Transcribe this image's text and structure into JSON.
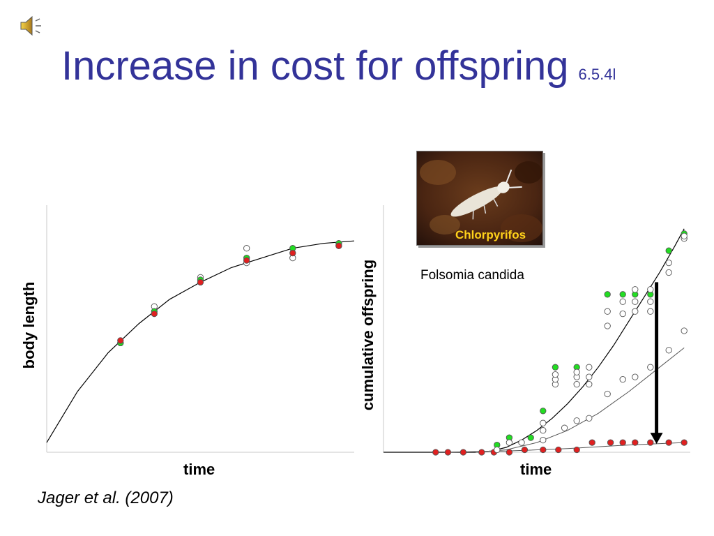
{
  "slide": {
    "title": "Increase in cost for offspring",
    "slide_number": "6.5.4l",
    "citation": "Jager et al. (2007)",
    "photo_label": "Chlorpyrifos",
    "species": "Folsomia candida"
  },
  "colors": {
    "title": "#333399",
    "control": "#22dd22",
    "exposed": "#e02020",
    "photo_label": "#ffd21a"
  },
  "icons": {
    "speaker": "speaker-icon"
  },
  "chart_data": [
    {
      "type": "scatter",
      "xlabel": "time",
      "ylabel": "body length",
      "xlim": [
        0,
        1
      ],
      "ylim": [
        0,
        1
      ],
      "grid": false,
      "series": [
        {
          "marker": "open",
          "points": [
            [
              0.24,
              0.45
            ],
            [
              0.35,
              0.6
            ],
            [
              0.5,
              0.72
            ],
            [
              0.65,
              0.84
            ],
            [
              0.65,
              0.78
            ],
            [
              0.8,
              0.8
            ],
            [
              0.95,
              0.85
            ]
          ]
        },
        {
          "marker": "green",
          "points": [
            [
              0.24,
              0.45
            ],
            [
              0.35,
              0.58
            ],
            [
              0.5,
              0.71
            ],
            [
              0.65,
              0.8
            ],
            [
              0.8,
              0.84
            ],
            [
              0.95,
              0.86
            ]
          ]
        },
        {
          "marker": "red",
          "points": [
            [
              0.24,
              0.46
            ],
            [
              0.35,
              0.57
            ],
            [
              0.5,
              0.7
            ],
            [
              0.65,
              0.79
            ],
            [
              0.8,
              0.82
            ],
            [
              0.95,
              0.85
            ]
          ]
        }
      ],
      "fit_lines": [
        {
          "style": "solid",
          "points": [
            [
              0,
              0.04
            ],
            [
              0.1,
              0.25
            ],
            [
              0.2,
              0.41
            ],
            [
              0.3,
              0.53
            ],
            [
              0.4,
              0.63
            ],
            [
              0.5,
              0.7
            ],
            [
              0.6,
              0.76
            ],
            [
              0.7,
              0.8
            ],
            [
              0.8,
              0.84
            ],
            [
              0.9,
              0.86
            ],
            [
              1,
              0.87
            ]
          ]
        }
      ]
    },
    {
      "type": "scatter",
      "xlabel": "time",
      "ylabel": "cumulative offspring",
      "xlim": [
        0,
        1
      ],
      "ylim": [
        0,
        1
      ],
      "grid": false,
      "series": [
        {
          "marker": "green",
          "points": [
            [
              0.37,
              0.03
            ],
            [
              0.41,
              0.06
            ],
            [
              0.48,
              0.06
            ],
            [
              0.52,
              0.17
            ],
            [
              0.56,
              0.35
            ],
            [
              0.63,
              0.35
            ],
            [
              0.73,
              0.65
            ],
            [
              0.78,
              0.65
            ],
            [
              0.82,
              0.65
            ],
            [
              0.87,
              0.65
            ],
            [
              0.93,
              0.83
            ],
            [
              0.98,
              0.9
            ]
          ]
        },
        {
          "marker": "red",
          "points": [
            [
              0.17,
              0
            ],
            [
              0.21,
              0
            ],
            [
              0.26,
              0
            ],
            [
              0.32,
              0
            ],
            [
              0.36,
              0
            ],
            [
              0.41,
              0
            ],
            [
              0.46,
              0.01
            ],
            [
              0.52,
              0.01
            ],
            [
              0.57,
              0.01
            ],
            [
              0.63,
              0.01
            ],
            [
              0.68,
              0.04
            ],
            [
              0.74,
              0.04
            ],
            [
              0.78,
              0.04
            ],
            [
              0.82,
              0.04
            ],
            [
              0.87,
              0.04
            ],
            [
              0.93,
              0.04
            ],
            [
              0.98,
              0.04
            ]
          ]
        },
        {
          "marker": "open",
          "points": [
            [
              0.37,
              0.01
            ],
            [
              0.41,
              0.04
            ],
            [
              0.45,
              0.04
            ],
            [
              0.52,
              0.05
            ],
            [
              0.52,
              0.09
            ],
            [
              0.52,
              0.12
            ],
            [
              0.56,
              0.28
            ],
            [
              0.56,
              0.3
            ],
            [
              0.56,
              0.32
            ],
            [
              0.63,
              0.28
            ],
            [
              0.63,
              0.31
            ],
            [
              0.63,
              0.33
            ],
            [
              0.67,
              0.28
            ],
            [
              0.67,
              0.31
            ],
            [
              0.67,
              0.35
            ],
            [
              0.73,
              0.52
            ],
            [
              0.73,
              0.58
            ],
            [
              0.78,
              0.57
            ],
            [
              0.78,
              0.62
            ],
            [
              0.82,
              0.58
            ],
            [
              0.82,
              0.62
            ],
            [
              0.82,
              0.67
            ],
            [
              0.87,
              0.58
            ],
            [
              0.87,
              0.62
            ],
            [
              0.87,
              0.67
            ],
            [
              0.93,
              0.74
            ],
            [
              0.93,
              0.78
            ],
            [
              0.98,
              0.88
            ],
            [
              0.98,
              0.89
            ],
            [
              0.59,
              0.1
            ],
            [
              0.63,
              0.13
            ],
            [
              0.67,
              0.14
            ],
            [
              0.73,
              0.24
            ],
            [
              0.78,
              0.3
            ],
            [
              0.82,
              0.31
            ],
            [
              0.87,
              0.35
            ],
            [
              0.93,
              0.42
            ],
            [
              0.98,
              0.5
            ]
          ]
        }
      ],
      "fit_lines": [
        {
          "style": "solid",
          "points": [
            [
              0,
              0
            ],
            [
              0.3,
              0
            ],
            [
              0.35,
              0.005
            ],
            [
              0.4,
              0.02
            ],
            [
              0.45,
              0.05
            ],
            [
              0.5,
              0.09
            ],
            [
              0.55,
              0.14
            ],
            [
              0.6,
              0.2
            ],
            [
              0.65,
              0.27
            ],
            [
              0.7,
              0.35
            ],
            [
              0.75,
              0.44
            ],
            [
              0.8,
              0.54
            ],
            [
              0.85,
              0.64
            ],
            [
              0.9,
              0.74
            ],
            [
              0.95,
              0.85
            ],
            [
              0.98,
              0.92
            ]
          ]
        },
        {
          "style": "thin",
          "points": [
            [
              0.3,
              0
            ],
            [
              0.4,
              0.01
            ],
            [
              0.5,
              0.04
            ],
            [
              0.6,
              0.09
            ],
            [
              0.7,
              0.16
            ],
            [
              0.8,
              0.25
            ],
            [
              0.9,
              0.35
            ],
            [
              0.98,
              0.43
            ]
          ]
        },
        {
          "style": "thin",
          "points": [
            [
              0.2,
              0
            ],
            [
              0.4,
              0.005
            ],
            [
              0.6,
              0.015
            ],
            [
              0.8,
              0.03
            ],
            [
              0.98,
              0.04
            ]
          ]
        }
      ],
      "annotation": {
        "type": "arrow",
        "direction": "down",
        "x": 0.89,
        "y_from": 0.7,
        "y_to": 0.04
      }
    }
  ]
}
